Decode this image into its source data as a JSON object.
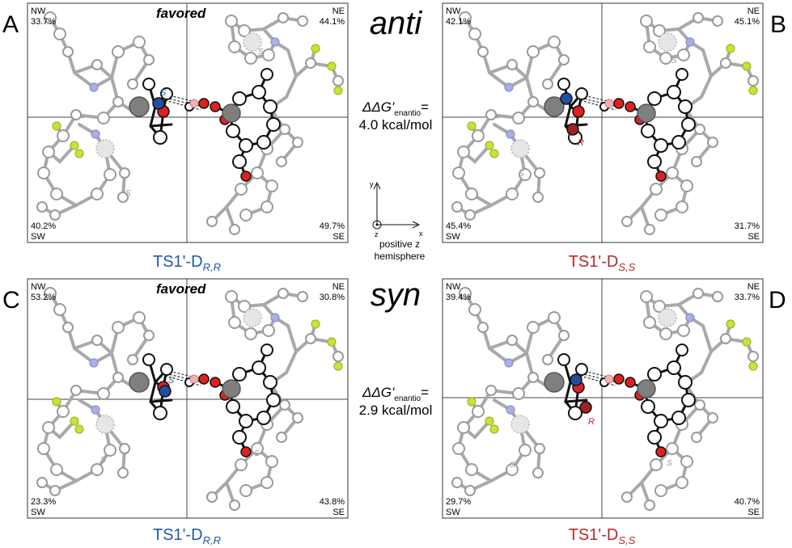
{
  "middle": {
    "anti_label": "anti",
    "syn_label": "syn",
    "ddg_symbol": "ΔΔG'",
    "ddg_subscript": "enantio",
    "ddg_equals": "=",
    "anti_ddg_value": "4.0 kcal/mol",
    "syn_ddg_value": "2.9 kcal/mol",
    "axis_y_label": "y",
    "axis_x_label": "x",
    "axis_z_label": "z",
    "axis_caption_line1": "positive z",
    "axis_caption_line2": "hemisphere"
  },
  "panels": [
    {
      "letter": "A",
      "favored": "favored",
      "quad": {
        "nw_name": "NW",
        "nw_pct": "33.7%",
        "ne_name": "NE",
        "ne_pct": "44.1%",
        "sw_name": "SW",
        "sw_pct": "40.2%",
        "se_name": "SE",
        "se_pct": "49.7%"
      },
      "title_main": "TS1'-D",
      "title_sub": "R,R",
      "title_color": "#1f5aa6",
      "stereo_center_label": "S",
      "stereo_center_color": "#1f5aa6",
      "bg_labels": [
        "S",
        "S"
      ]
    },
    {
      "letter": "B",
      "favored": "",
      "quad": {
        "nw_name": "NW",
        "nw_pct": "42.1%",
        "ne_name": "NE",
        "ne_pct": "45.1%",
        "sw_name": "SW",
        "sw_pct": "45.4%",
        "se_name": "SE",
        "se_pct": "31.7%"
      },
      "title_main": "TS1'-D",
      "title_sub": "S,S",
      "title_color": "#b42b2b",
      "stereo_center_label": "R",
      "stereo_center_color": "#b42b2b",
      "bg_labels": [
        "S",
        "S"
      ]
    },
    {
      "letter": "C",
      "favored": "favored",
      "quad": {
        "nw_name": "NW",
        "nw_pct": "53.2%",
        "ne_name": "NE",
        "ne_pct": "30.8%",
        "sw_name": "SW",
        "sw_pct": "23.3%",
        "se_name": "SE",
        "se_pct": "43.8%"
      },
      "title_main": "TS1'-D",
      "title_sub": "R,R",
      "title_color": "#1f5aa6",
      "stereo_center_label": "S",
      "stereo_center_color": "#1f5aa6",
      "bg_labels": [
        "S",
        "S"
      ]
    },
    {
      "letter": "D",
      "favored": "",
      "quad": {
        "nw_name": "NW",
        "nw_pct": "39.4%",
        "ne_name": "NE",
        "ne_pct": "33.7%",
        "sw_name": "SW",
        "sw_pct": "29.7%",
        "se_name": "SE",
        "se_pct": "40.7%"
      },
      "title_main": "TS1'-D",
      "title_sub": "S,S",
      "title_color": "#b42b2b",
      "stereo_center_label": "R",
      "stereo_center_color": "#b42b2b",
      "bg_labels": [
        "S",
        "S"
      ]
    }
  ]
}
